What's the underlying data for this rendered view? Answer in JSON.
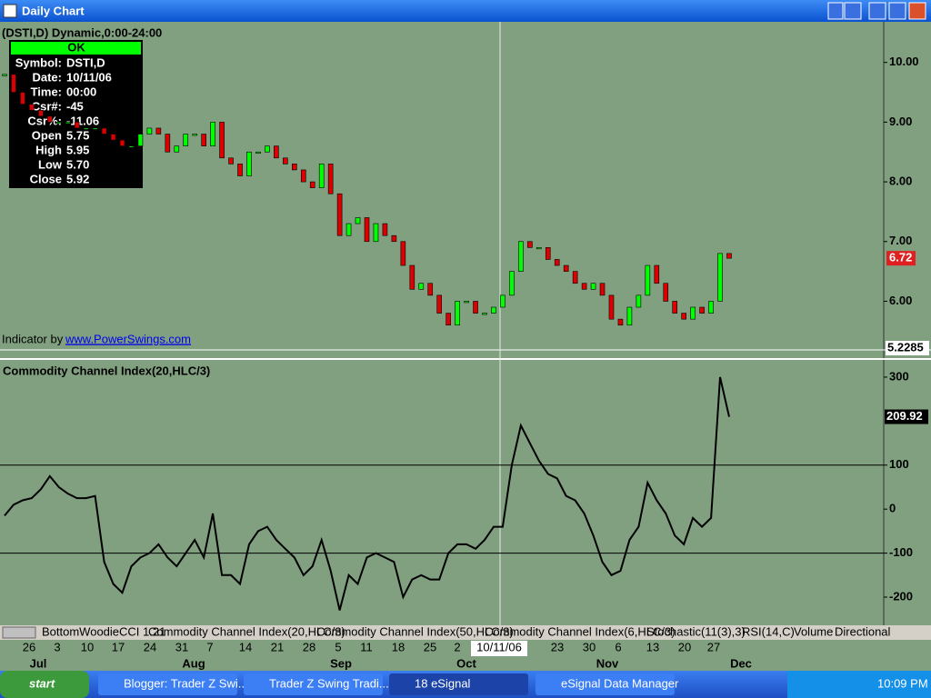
{
  "window": {
    "title": "Daily Chart"
  },
  "header": "(DSTI,D) Dynamic,0:00-24:00",
  "cursor_box": {
    "status": "OK",
    "rows": [
      [
        "Symbol:",
        "DSTI,D"
      ],
      [
        "Date:",
        "10/11/06"
      ],
      [
        "Time:",
        "00:00"
      ],
      [
        "Csr#:",
        "-45"
      ],
      [
        "Csr%:",
        "-11.06"
      ],
      [
        "Open",
        "5.75"
      ],
      [
        "High",
        "5.95"
      ],
      [
        "Low",
        "5.70"
      ],
      [
        "Close",
        "5.92"
      ]
    ]
  },
  "indicator_credit": {
    "text": "Indicator by",
    "link": "www.PowerSwings.com"
  },
  "chart_data": [
    {
      "type": "candlestick",
      "values": [
        9.8,
        9.5,
        9.3,
        9.2,
        9.1,
        9.0,
        9.0,
        9.0,
        8.9,
        8.9,
        8.9,
        8.8,
        8.7,
        8.6,
        8.6,
        8.8,
        8.9,
        8.8,
        8.5,
        8.6,
        8.8,
        8.8,
        8.6,
        9.0,
        8.4,
        8.3,
        8.1,
        8.5,
        8.5,
        8.6,
        8.4,
        8.3,
        8.2,
        8.0,
        7.9,
        8.3,
        7.8,
        7.1,
        7.3,
        7.4,
        7.0,
        7.3,
        7.1,
        7.0,
        6.6,
        6.2,
        6.3,
        6.1,
        5.8,
        5.6,
        6.0,
        6.0,
        5.8,
        5.8,
        5.9,
        6.1,
        6.5,
        7.0,
        6.9,
        6.9,
        6.7,
        6.6,
        6.5,
        6.3,
        6.2,
        6.3,
        6.1,
        5.7,
        5.6,
        5.9,
        6.1,
        6.6,
        6.3,
        6.0,
        5.8,
        5.7,
        5.9,
        5.8,
        6.0,
        6.8,
        6.72
      ],
      "colors": {
        "up": "#00ff00",
        "down": "#dd0000"
      },
      "ylim": [
        5.2,
        10.65
      ],
      "yticks": [
        {
          "value": 10,
          "label": "10.00"
        },
        {
          "value": 9,
          "label": "9.00"
        },
        {
          "value": 8,
          "label": "8.00"
        },
        {
          "value": 7,
          "label": "7.00"
        },
        {
          "value": 6,
          "label": "6.00"
        }
      ],
      "last_value": 6.72,
      "cursor_value": 5.2285
    },
    {
      "type": "line",
      "title": "Commodity Channel Index(20,HLC/3)",
      "color": "#000000",
      "values": [
        -15,
        10,
        20,
        25,
        45,
        75,
        50,
        35,
        25,
        25,
        30,
        -120,
        -170,
        -190,
        -130,
        -110,
        -100,
        -80,
        -110,
        -130,
        -100,
        -70,
        -110,
        -10,
        -150,
        -150,
        -170,
        -80,
        -50,
        -40,
        -70,
        -90,
        -110,
        -150,
        -130,
        -70,
        -140,
        -230,
        -150,
        -170,
        -110,
        -100,
        -110,
        -120,
        -200,
        -160,
        -150,
        -160,
        -160,
        -100,
        -80,
        -80,
        -90,
        -70,
        -40,
        -40,
        100,
        190,
        150,
        110,
        80,
        70,
        30,
        20,
        -10,
        -60,
        -120,
        -150,
        -140,
        -70,
        -40,
        60,
        20,
        -10,
        -60,
        -80,
        -20,
        -40,
        -20,
        300,
        209.92
      ],
      "ylim": [
        -264,
        335
      ],
      "yticks": [
        300,
        100,
        0,
        -100,
        -200
      ],
      "hlines": [
        100,
        -100
      ],
      "last_value": 209.92
    }
  ],
  "date_axis": {
    "days": [
      "26",
      "3",
      "10",
      "17",
      "24",
      "31",
      "7",
      "14",
      "21",
      "28",
      "5",
      "11",
      "18",
      "25",
      "2",
      "23",
      "30",
      "6",
      "13",
      "20",
      "27"
    ],
    "months": [
      "Jul",
      "Aug",
      "Sep",
      "Oct",
      "Nov",
      "Dec"
    ],
    "cursor_date": "10/11/06"
  },
  "tabs": [
    "BottomWoodieCCI 1.21",
    "Commodity Channel Index(20,HLC/3)",
    "Commodity Channel Index(50,HLC/3)",
    "Commodity Channel Index(6,HLC/3)",
    "Stochastic(11(3),3)",
    "RSI(14,C)",
    "Volume",
    "Directional"
  ],
  "taskbar": {
    "start": "start",
    "items": [
      "Blogger: Trader Z Swi...",
      "Trader Z Swing Tradi...",
      "18 eSignal",
      "eSignal Data Manager"
    ],
    "clock": "10:09 PM"
  }
}
